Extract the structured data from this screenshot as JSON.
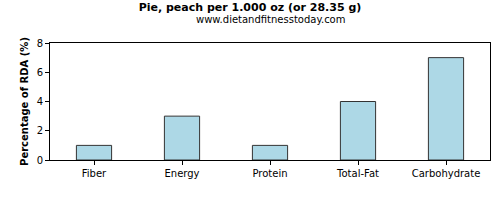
{
  "chart_data": {
    "type": "bar",
    "title": "Pie, peach per 1.000 oz (or 28.35 g)",
    "subtitle": "www.dietandfitnesstoday.com",
    "ylabel": "Percentage of RDA (%)",
    "categories": [
      "Fiber",
      "Energy",
      "Protein",
      "Total-Fat",
      "Carbohydrate"
    ],
    "values": [
      1,
      3,
      1,
      4,
      7
    ],
    "color": "#add8e6",
    "ylim": [
      0,
      8
    ],
    "yticks": [
      0,
      2,
      4,
      6,
      8
    ],
    "grid": false
  }
}
